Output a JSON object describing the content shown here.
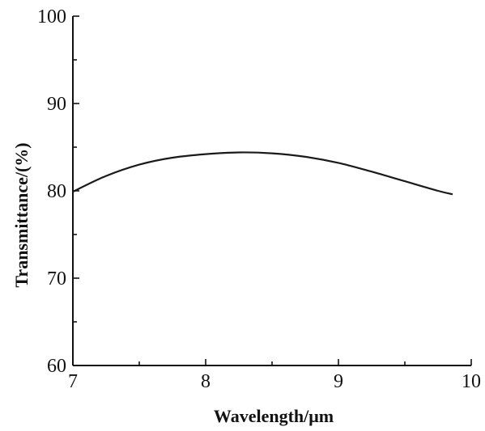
{
  "chart_data": {
    "type": "line",
    "title": "",
    "xlabel": "Wavelength/μm",
    "ylabel": "Transmittance/(%)",
    "xlim": [
      7,
      10
    ],
    "ylim": [
      60,
      100
    ],
    "x_ticks": [
      "7",
      "8",
      "9",
      "10"
    ],
    "y_ticks": [
      "60",
      "70",
      "80",
      "90",
      "100"
    ],
    "grid": false,
    "legend": "none",
    "series": [
      {
        "x": [
          7.0,
          7.25,
          7.5,
          7.75,
          8.0,
          8.25,
          8.5,
          8.75,
          9.0,
          9.25,
          9.5,
          9.75,
          9.86
        ],
        "y": [
          79.9,
          81.7,
          83.0,
          83.8,
          84.2,
          84.4,
          84.3,
          83.9,
          83.2,
          82.2,
          81.1,
          80.0,
          79.6
        ]
      }
    ]
  }
}
